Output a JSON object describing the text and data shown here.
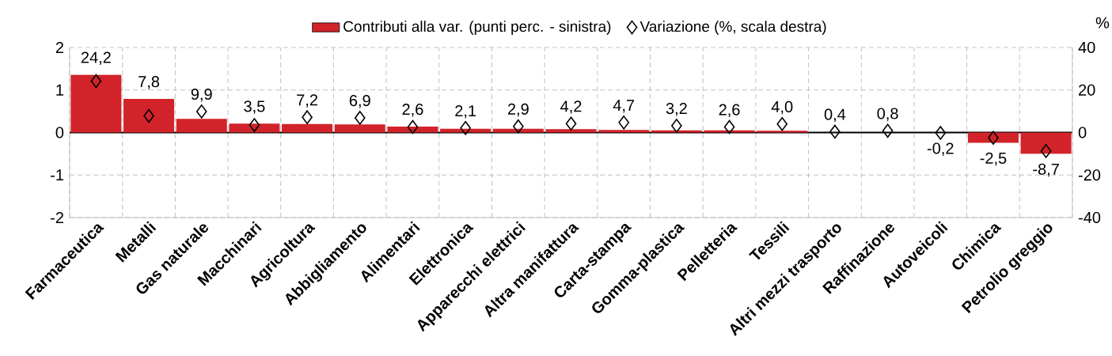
{
  "chart_data": {
    "type": "bar",
    "categories": [
      "Farmaceutica",
      "Metalli",
      "Gas naturale",
      "Macchinari",
      "Agricoltura",
      "Abbigliamento",
      "Alimentari",
      "Elettronica",
      "Apparecchi elettrici",
      "Altra manifattura",
      "Carta-stampa",
      "Gomma-plastica",
      "Pelletteria",
      "Tessili",
      "Altri mezzi trasporto",
      "Raffinazione",
      "Autoveicoli",
      "Chimica",
      "Petrolio greggio"
    ],
    "series": [
      {
        "name": "Contributi alla var. (punti perc. - sinistra)",
        "color": "#d2232a",
        "values": [
          1.36,
          0.79,
          0.32,
          0.21,
          0.2,
          0.19,
          0.14,
          0.09,
          0.09,
          0.08,
          0.06,
          0.05,
          0.05,
          0.04,
          0.0,
          0.0,
          null,
          -0.24,
          -0.5
        ]
      },
      {
        "name": "Variazione (%, scala destra)",
        "type": "scatter",
        "axis": "y2",
        "marker": "diamond",
        "color": "#000000",
        "values": [
          24.2,
          7.8,
          9.9,
          3.5,
          7.2,
          6.9,
          2.6,
          2.1,
          2.9,
          4.2,
          4.7,
          3.2,
          2.6,
          4.0,
          0.4,
          0.8,
          -0.2,
          -2.5,
          -8.7
        ],
        "value_labels": [
          "24,2",
          "7,8",
          "9,9",
          "3,5",
          "7,2",
          "6,9",
          "2,6",
          "2,1",
          "2,9",
          "4,2",
          "4,7",
          "3,2",
          "2,6",
          "4,0",
          "0,4",
          "0,8",
          "-0,2",
          "-2,5",
          "-8,7"
        ]
      }
    ],
    "y2label": "%",
    "ylim": [
      -2,
      2
    ],
    "yticks": [
      -2,
      -1,
      0,
      1,
      2
    ],
    "y2lim": [
      -40,
      40
    ],
    "y2ticks": [
      -40,
      -20,
      0,
      20,
      40
    ],
    "grid": true,
    "legend": "top"
  }
}
